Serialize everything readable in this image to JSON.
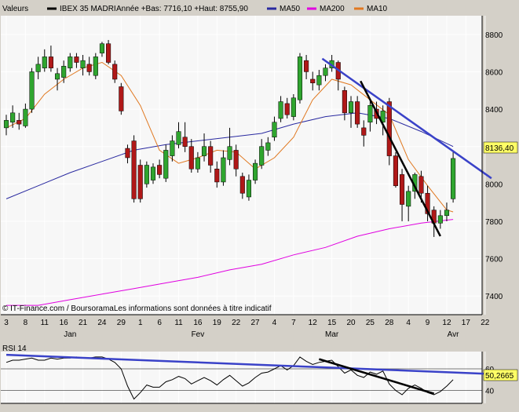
{
  "header": {
    "label": "Valeurs",
    "ticker": "IBEX 35 MADRI",
    "range": "Année +Bas: 7716,10 +Haut: 8755,90",
    "legend": [
      {
        "name": "MA50",
        "color": "#2a2aa0"
      },
      {
        "name": "MA200",
        "color": "#e000e0"
      },
      {
        "name": "MA10",
        "color": "#e07820"
      }
    ]
  },
  "footer": {
    "source": "© IT-Finance.com / BoursoramaLes informations sont données à titre indicatif"
  },
  "colors": {
    "up": "#2fa52f",
    "down": "#b01818",
    "grid": "#ffffff",
    "plot_bg": "#f7f7f7",
    "trend_blue": "#3a42c8",
    "trend_black": "#000000",
    "rsi": "#000000"
  },
  "chart_data": [
    {
      "type": "candlestick",
      "yaxis_side": "right",
      "ylim": [
        7300,
        8900
      ],
      "yticks": [
        "7400",
        "7600",
        "7800",
        "8000",
        "8200",
        "8400",
        "8600",
        "8800"
      ],
      "yticks_values": [
        7400,
        7600,
        7800,
        8000,
        8200,
        8400,
        8600,
        8800
      ],
      "last_price": "8136,40",
      "last_value": 8136.4,
      "x_ticks": [
        "3",
        "8",
        "11",
        "16",
        "21",
        "24",
        "29",
        "1",
        "6",
        "11",
        "16",
        "19",
        "22",
        "27",
        "4",
        "7",
        "12",
        "15",
        "20",
        "25",
        "28",
        "4",
        "9",
        "12",
        "17",
        "22"
      ],
      "x_tick_index": [
        0,
        3,
        6,
        9,
        12,
        15,
        18,
        21,
        24,
        27,
        30,
        33,
        36,
        39,
        42,
        45,
        48,
        51,
        54,
        57,
        60,
        63,
        66,
        69,
        72,
        75
      ],
      "months": [
        "Jan",
        "Fev",
        "Mar",
        "Avr"
      ],
      "months_index": [
        10,
        30,
        51,
        70
      ],
      "n_slots": 77,
      "candles": [
        {
          "o": 8300,
          "c": 8340,
          "h": 8370,
          "l": 8260
        },
        {
          "o": 8330,
          "c": 8380,
          "h": 8420,
          "l": 8300
        },
        {
          "o": 8340,
          "c": 8320,
          "h": 8380,
          "l": 8290
        },
        {
          "o": 8310,
          "c": 8400,
          "h": 8430,
          "l": 8300
        },
        {
          "o": 8400,
          "c": 8600,
          "h": 8620,
          "l": 8380
        },
        {
          "o": 8600,
          "c": 8640,
          "h": 8680,
          "l": 8560
        },
        {
          "o": 8620,
          "c": 8680,
          "h": 8720,
          "l": 8600
        },
        {
          "o": 8680,
          "c": 8620,
          "h": 8740,
          "l": 8600
        },
        {
          "o": 8560,
          "c": 8590,
          "h": 8620,
          "l": 8500
        },
        {
          "o": 8570,
          "c": 8630,
          "h": 8660,
          "l": 8540
        },
        {
          "o": 8620,
          "c": 8680,
          "h": 8700,
          "l": 8600
        },
        {
          "o": 8680,
          "c": 8650,
          "h": 8700,
          "l": 8620
        },
        {
          "o": 8620,
          "c": 8660,
          "h": 8690,
          "l": 8580
        },
        {
          "o": 8640,
          "c": 8600,
          "h": 8680,
          "l": 8580
        },
        {
          "o": 8580,
          "c": 8680,
          "h": 8700,
          "l": 8560
        },
        {
          "o": 8700,
          "c": 8750,
          "h": 8760,
          "l": 8680
        },
        {
          "o": 8750,
          "c": 8650,
          "h": 8770,
          "l": 8640
        },
        {
          "o": 8640,
          "c": 8560,
          "h": 8660,
          "l": 8540
        },
        {
          "o": 8520,
          "c": 8390,
          "h": 8540,
          "l": 8370
        },
        {
          "o": 8190,
          "c": 8140,
          "h": 8210,
          "l": 8110
        },
        {
          "o": 8230,
          "c": 7920,
          "h": 8260,
          "l": 7900
        },
        {
          "o": 8100,
          "c": 7920,
          "h": 8130,
          "l": 7900
        },
        {
          "o": 8000,
          "c": 8100,
          "h": 8120,
          "l": 7980
        },
        {
          "o": 8020,
          "c": 8090,
          "h": 8110,
          "l": 8000
        },
        {
          "o": 8100,
          "c": 8050,
          "h": 8130,
          "l": 8030
        },
        {
          "o": 8030,
          "c": 8180,
          "h": 8210,
          "l": 8010
        },
        {
          "o": 8150,
          "c": 8230,
          "h": 8260,
          "l": 8120
        },
        {
          "o": 8210,
          "c": 8280,
          "h": 8330,
          "l": 8190
        },
        {
          "o": 8250,
          "c": 8200,
          "h": 8330,
          "l": 8170
        },
        {
          "o": 8200,
          "c": 8080,
          "h": 8240,
          "l": 8060
        },
        {
          "o": 8080,
          "c": 8140,
          "h": 8170,
          "l": 8060
        },
        {
          "o": 8150,
          "c": 8200,
          "h": 8270,
          "l": 8120
        },
        {
          "o": 8200,
          "c": 8100,
          "h": 8230,
          "l": 8060
        },
        {
          "o": 8080,
          "c": 8010,
          "h": 8120,
          "l": 7980
        },
        {
          "o": 8010,
          "c": 8140,
          "h": 8180,
          "l": 7990
        },
        {
          "o": 8130,
          "c": 8200,
          "h": 8300,
          "l": 8100
        },
        {
          "o": 8180,
          "c": 8080,
          "h": 8210,
          "l": 8040
        },
        {
          "o": 8040,
          "c": 7950,
          "h": 8060,
          "l": 7920
        },
        {
          "o": 7930,
          "c": 8020,
          "h": 8050,
          "l": 7910
        },
        {
          "o": 8020,
          "c": 8110,
          "h": 8130,
          "l": 8000
        },
        {
          "o": 8100,
          "c": 8200,
          "h": 8240,
          "l": 8080
        },
        {
          "o": 8180,
          "c": 8220,
          "h": 8250,
          "l": 8150
        },
        {
          "o": 8250,
          "c": 8330,
          "h": 8360,
          "l": 8230
        },
        {
          "o": 8350,
          "c": 8440,
          "h": 8470,
          "l": 8330
        },
        {
          "o": 8430,
          "c": 8370,
          "h": 8460,
          "l": 8350
        },
        {
          "o": 8360,
          "c": 8460,
          "h": 8480,
          "l": 8340
        },
        {
          "o": 8450,
          "c": 8680,
          "h": 8700,
          "l": 8430
        },
        {
          "o": 8660,
          "c": 8600,
          "h": 8690,
          "l": 8560
        },
        {
          "o": 8560,
          "c": 8540,
          "h": 8600,
          "l": 8500
        },
        {
          "o": 8530,
          "c": 8580,
          "h": 8610,
          "l": 8500
        },
        {
          "o": 8580,
          "c": 8620,
          "h": 8640,
          "l": 8550
        },
        {
          "o": 8620,
          "c": 8660,
          "h": 8690,
          "l": 8600
        },
        {
          "o": 8650,
          "c": 8560,
          "h": 8660,
          "l": 8500
        },
        {
          "o": 8500,
          "c": 8380,
          "h": 8520,
          "l": 8340
        },
        {
          "o": 8380,
          "c": 8440,
          "h": 8470,
          "l": 8300
        },
        {
          "o": 8440,
          "c": 8320,
          "h": 8470,
          "l": 8300
        },
        {
          "o": 8300,
          "c": 8260,
          "h": 8340,
          "l": 8200
        },
        {
          "o": 8330,
          "c": 8420,
          "h": 8450,
          "l": 8280
        },
        {
          "o": 8400,
          "c": 8350,
          "h": 8440,
          "l": 8320
        },
        {
          "o": 8330,
          "c": 8390,
          "h": 8420,
          "l": 8260
        },
        {
          "o": 8440,
          "c": 8150,
          "h": 8460,
          "l": 8100
        },
        {
          "o": 8150,
          "c": 7990,
          "h": 8170,
          "l": 7980
        },
        {
          "o": 8050,
          "c": 7890,
          "h": 8080,
          "l": 7800
        },
        {
          "o": 7880,
          "c": 7960,
          "h": 7990,
          "l": 7800
        },
        {
          "o": 7960,
          "c": 8050,
          "h": 8060,
          "l": 7920
        },
        {
          "o": 8040,
          "c": 7950,
          "h": 8070,
          "l": 7900
        },
        {
          "o": 7950,
          "c": 7840,
          "h": 7990,
          "l": 7800
        },
        {
          "o": 7860,
          "c": 7790,
          "h": 7880,
          "l": 7716
        },
        {
          "o": 7790,
          "c": 7830,
          "h": 7860,
          "l": 7760
        },
        {
          "o": 7830,
          "c": 7860,
          "h": 7900,
          "l": 7800
        },
        {
          "o": 7920,
          "c": 8136,
          "h": 8170,
          "l": 7900
        }
      ],
      "series": [
        {
          "name": "MA50",
          "color": "#2a2aa0",
          "points": [
            [
              0,
              7920
            ],
            [
              5,
              7990
            ],
            [
              10,
              8060
            ],
            [
              15,
              8120
            ],
            [
              20,
              8180
            ],
            [
              25,
              8210
            ],
            [
              30,
              8230
            ],
            [
              35,
              8250
            ],
            [
              40,
              8270
            ],
            [
              45,
              8320
            ],
            [
              50,
              8360
            ],
            [
              55,
              8380
            ],
            [
              60,
              8350
            ],
            [
              65,
              8280
            ],
            [
              70,
              8200
            ]
          ]
        },
        {
          "name": "MA200",
          "color": "#e000e0",
          "points": [
            [
              0,
              7350
            ],
            [
              5,
              7350
            ],
            [
              10,
              7380
            ],
            [
              15,
              7410
            ],
            [
              20,
              7440
            ],
            [
              25,
              7470
            ],
            [
              30,
              7500
            ],
            [
              35,
              7540
            ],
            [
              40,
              7570
            ],
            [
              45,
              7620
            ],
            [
              50,
              7660
            ],
            [
              55,
              7720
            ],
            [
              60,
              7760
            ],
            [
              65,
              7790
            ],
            [
              70,
              7810
            ]
          ]
        },
        {
          "name": "MA10",
          "color": "#e07820",
          "points": [
            [
              0,
              8300
            ],
            [
              3,
              8350
            ],
            [
              6,
              8480
            ],
            [
              9,
              8560
            ],
            [
              12,
              8620
            ],
            [
              15,
              8650
            ],
            [
              18,
              8580
            ],
            [
              21,
              8420
            ],
            [
              24,
              8180
            ],
            [
              27,
              8110
            ],
            [
              30,
              8140
            ],
            [
              33,
              8180
            ],
            [
              36,
              8170
            ],
            [
              39,
              8080
            ],
            [
              42,
              8140
            ],
            [
              45,
              8250
            ],
            [
              48,
              8450
            ],
            [
              51,
              8560
            ],
            [
              54,
              8530
            ],
            [
              57,
              8450
            ],
            [
              60,
              8370
            ],
            [
              63,
              8130
            ],
            [
              66,
              7990
            ],
            [
              69,
              7860
            ],
            [
              70,
              7850
            ]
          ]
        }
      ],
      "trendlines": [
        {
          "color": "#3a42c8",
          "points": [
            [
              49.5,
              8670
            ],
            [
              76,
              8030
            ]
          ]
        },
        {
          "color": "#000000",
          "points": [
            [
              55.5,
              8550
            ],
            [
              68,
              7720
            ]
          ]
        }
      ]
    },
    {
      "type": "line",
      "label": "RSI 14",
      "ylim": [
        28,
        76
      ],
      "yticks": [
        "40",
        "60"
      ],
      "yticks_values": [
        40,
        60
      ],
      "last_value_label": "50,2665",
      "last_value": 50.27,
      "values": [
        66,
        68,
        68,
        69,
        70,
        68,
        68,
        70,
        69,
        70,
        70,
        71,
        70,
        70,
        71,
        71,
        69,
        66,
        60,
        44,
        32,
        38,
        45,
        43,
        43,
        48,
        50,
        53,
        51,
        46,
        49,
        52,
        49,
        45,
        50,
        54,
        49,
        44,
        47,
        52,
        56,
        57,
        60,
        63,
        59,
        63,
        71,
        67,
        64,
        66,
        67,
        68,
        62,
        56,
        59,
        54,
        52,
        57,
        55,
        58,
        46,
        40,
        36,
        42,
        45,
        42,
        38,
        36,
        39,
        44,
        50
      ],
      "trendlines": [
        {
          "color": "#3a42c8",
          "points": [
            [
              0,
              73
            ],
            [
              77,
              55
            ]
          ]
        },
        {
          "color": "#000000",
          "points": [
            [
              49,
              69
            ],
            [
              67,
              37
            ]
          ]
        }
      ]
    }
  ]
}
